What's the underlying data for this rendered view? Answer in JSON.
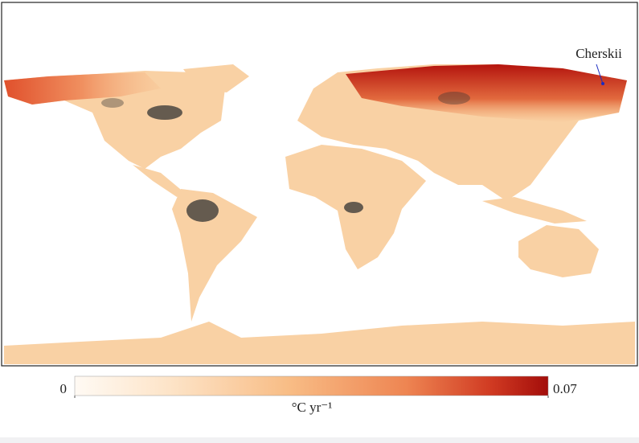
{
  "map": {
    "annotation": "Cherskii",
    "colorbar": {
      "lim": [
        0,
        0.07
      ],
      "ticks": [
        0,
        0.07
      ],
      "label": "°C yr⁻¹"
    }
  }
}
